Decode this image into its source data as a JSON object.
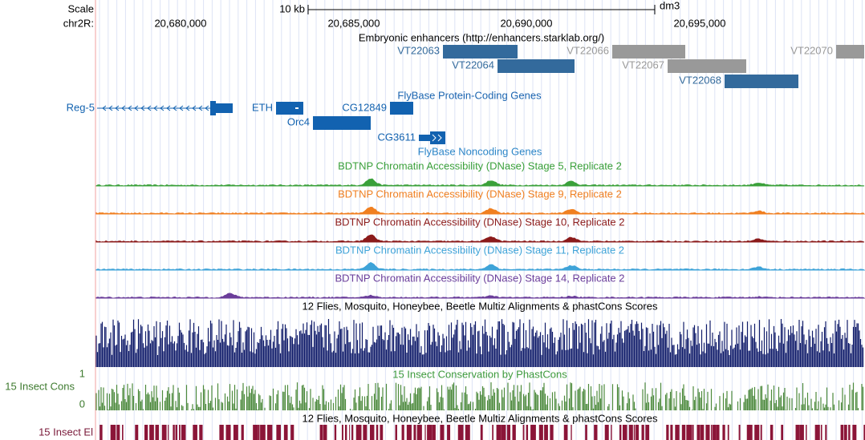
{
  "ruler": {
    "scale_label": "Scale",
    "scale_bar": "10 kb",
    "assembly": "dm3",
    "chrom": "chr2R:",
    "positions": [
      "20,680,000",
      "20,685,000",
      "20,690,000",
      "20,695,000"
    ]
  },
  "enhancers": {
    "title": "Embryonic enhancers (http://enhancers.starklab.org/)",
    "items": [
      "VT22063",
      "VT22064",
      "VT22066",
      "VT22067",
      "VT22068",
      "VT22070"
    ]
  },
  "genes": {
    "title": "FlyBase Protein-Coding Genes",
    "items": [
      "Reg-5",
      "ETH",
      "CG12849",
      "Orc4",
      "CG3611"
    ]
  },
  "noncoding_title": "FlyBase Noncoding Genes",
  "dnase": [
    "BDTNP Chromatin Accessibility (DNase) Stage 5, Replicate 2",
    "BDTNP Chromatin Accessibility (DNase) Stage 9, Replicate 2",
    "BDTNP Chromatin Accessibility (DNase) Stage 10, Replicate 2",
    "BDTNP Chromatin Accessibility (DNase) Stage 11, Replicate 2",
    "BDTNP Chromatin Accessibility (DNase) Stage 14, Replicate 2"
  ],
  "multiz_title": "12 Flies, Mosquito, Honeybee, Beetle Multiz Alignments & phastCons Scores",
  "cons": {
    "label": "15 Insect Cons",
    "max": "1",
    "min": "0",
    "title": "15 Insect Conservation by PhastCons"
  },
  "elements": {
    "label": "15 Insect El",
    "title": "12 Flies, Mosquito, Honeybee, Beetle Multiz Alignments & phastCons Scores"
  }
}
